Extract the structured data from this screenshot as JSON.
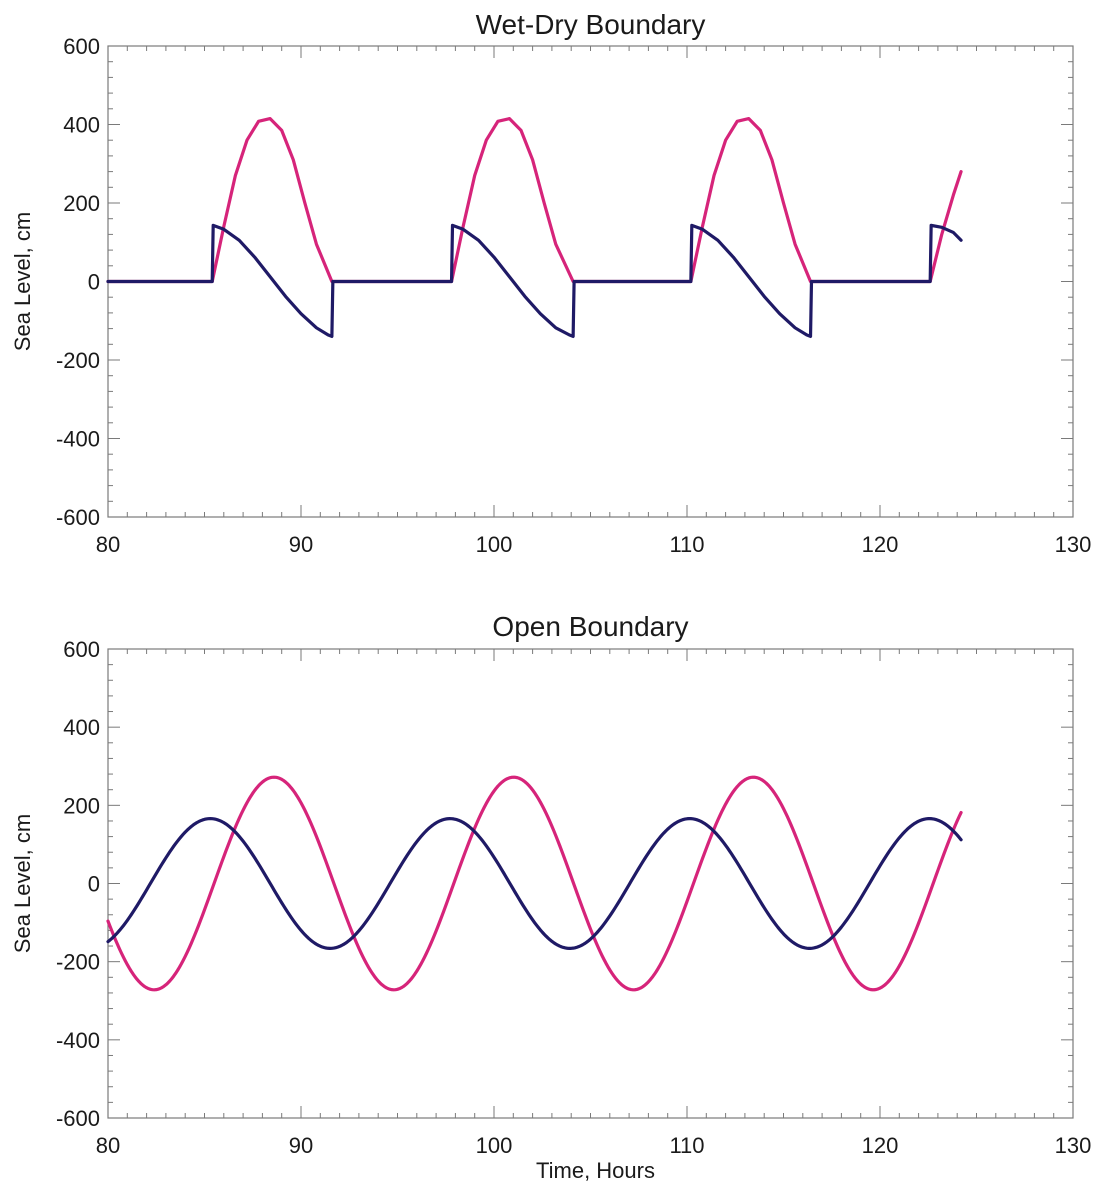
{
  "chart_data": [
    {
      "type": "line",
      "title": "Wet-Dry Boundary",
      "xlabel": "",
      "ylabel": "Sea Level, cm",
      "xlim": [
        80,
        130
      ],
      "ylim": [
        -600,
        600
      ],
      "x_ticks": [
        "80",
        "90",
        "100",
        "110",
        "120",
        "130"
      ],
      "y_ticks": [
        "600",
        "400",
        "200",
        "0",
        "-200",
        "-400",
        "-600"
      ],
      "grid": false,
      "legend": "none",
      "series": [
        {
          "color": "#d6247a",
          "x": [
            80,
            85.4,
            86.0,
            86.6,
            87.2,
            87.8,
            88.4,
            89.0,
            89.6,
            90.2,
            90.8,
            91.6,
            97.8,
            98.4,
            99.0,
            99.6,
            100.2,
            100.8,
            101.4,
            102.0,
            102.6,
            103.2,
            104.1,
            110.2,
            110.8,
            111.4,
            112.0,
            112.6,
            113.2,
            113.8,
            114.4,
            115.0,
            115.6,
            116.4,
            122.6,
            123.2,
            123.8,
            124.2
          ],
          "y": [
            0,
            0,
            140,
            270,
            360,
            408,
            415,
            385,
            310,
            200,
            95,
            0,
            0,
            140,
            270,
            360,
            408,
            415,
            385,
            310,
            200,
            95,
            0,
            0,
            140,
            270,
            360,
            408,
            415,
            385,
            310,
            200,
            95,
            0,
            0,
            120,
            220,
            280
          ]
        },
        {
          "color": "#1f1a66",
          "x": [
            80,
            85.4,
            85.45,
            86.0,
            86.8,
            87.6,
            88.4,
            89.2,
            90.0,
            90.8,
            91.4,
            91.6,
            91.65,
            97.8,
            97.85,
            98.4,
            99.2,
            100.0,
            100.8,
            101.6,
            102.4,
            103.2,
            103.9,
            104.1,
            104.15,
            110.2,
            110.25,
            110.8,
            111.6,
            112.4,
            113.2,
            114.0,
            114.8,
            115.6,
            116.2,
            116.4,
            116.45,
            122.6,
            122.65,
            123.2,
            123.8,
            124.2
          ],
          "y": [
            0,
            0,
            143,
            133,
            105,
            62,
            12,
            -38,
            -82,
            -118,
            -136,
            -140,
            0,
            0,
            143,
            133,
            105,
            62,
            12,
            -38,
            -82,
            -118,
            -136,
            -140,
            0,
            0,
            143,
            133,
            105,
            62,
            12,
            -38,
            -82,
            -118,
            -136,
            -140,
            0,
            0,
            143,
            138,
            125,
            105
          ]
        }
      ]
    },
    {
      "type": "line",
      "title": "Open Boundary",
      "xlabel": "Time, Hours",
      "ylabel": "Sea Level, cm",
      "xlim": [
        80,
        130
      ],
      "ylim": [
        -600,
        600
      ],
      "x_ticks": [
        "80",
        "90",
        "100",
        "110",
        "120",
        "130"
      ],
      "y_ticks": [
        "600",
        "400",
        "200",
        "0",
        "-200",
        "-400",
        "-600"
      ],
      "grid": false,
      "legend": "none",
      "series": [
        {
          "color": "#d6247a",
          "wave": {
            "x_start": 80,
            "x_end": 124.2,
            "amplitude": 272,
            "period_hours": 12.42,
            "peak_at_hour": 88.6
          }
        },
        {
          "color": "#1f1a66",
          "wave": {
            "x_start": 80,
            "x_end": 124.2,
            "amplitude": 166,
            "period_hours": 12.42,
            "peak_at_hour": 85.3
          }
        }
      ]
    }
  ]
}
